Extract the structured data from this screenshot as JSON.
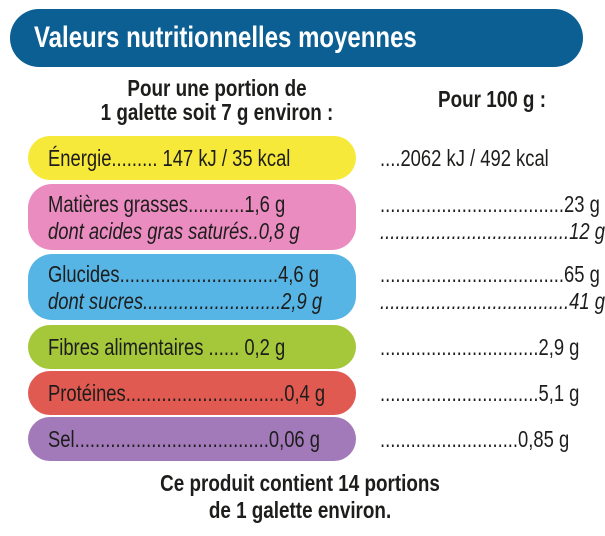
{
  "header": {
    "title": "Valeurs nutritionnelles moyennes"
  },
  "columns": {
    "portion_line1": "Pour une portion de",
    "portion_line2": "1 galette soit 7 g environ  :",
    "per100": "Pour 100 g :"
  },
  "colors": {
    "title_bg": "#0c5f93",
    "energie": "#f7e93a",
    "matieres_grasses": "#ea8cc0",
    "glucides": "#57b5e6",
    "fibres": "#a5c73a",
    "proteines": "#e15a52",
    "sel": "#a37ab9"
  },
  "rows": [
    {
      "left": "Énergie......... 147 kJ / 35 kcal",
      "right": "....2062 kJ / 492 kcal",
      "italic": false
    },
    {
      "left": "Matières grasses...........1,6 g",
      "right": "....................................23 g",
      "italic": false
    },
    {
      "left": "dont acides gras saturés..0,8 g",
      "right": ".....................................12 g",
      "italic": true
    },
    {
      "left": "Glucides...............................4,6 g",
      "right": "....................................65 g",
      "italic": false
    },
    {
      "left": "dont sucres...........................2,9 g",
      "right": ".....................................41 g",
      "italic": true
    },
    {
      "left": "Fibres alimentaires ...... 0,2 g",
      "right": "...............................2,9 g",
      "italic": false
    },
    {
      "left": "Protéines...............................0,4 g",
      "right": "...............................5,1 g",
      "italic": false
    },
    {
      "left": "Sel......................................0,06 g",
      "right": "...........................0,85 g",
      "italic": false
    }
  ],
  "footer": {
    "line1": "Ce produit contient 14 portions",
    "line2": "de 1 galette environ."
  }
}
